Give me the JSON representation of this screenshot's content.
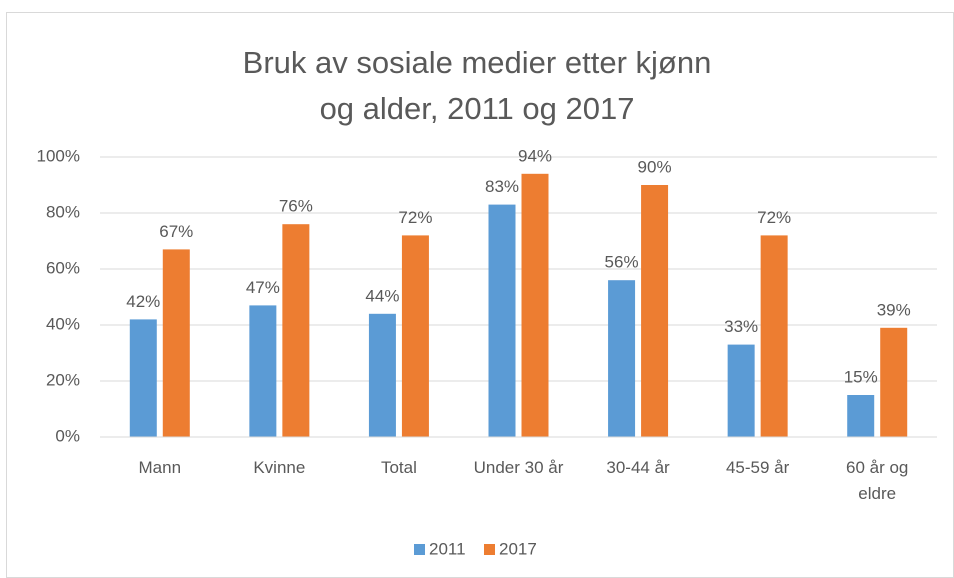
{
  "chart_data": {
    "type": "bar",
    "title": "Bruk av sosiale medier etter kjønn og alder, 2011 og 2017",
    "categories": [
      "Mann",
      "Kvinne",
      "Total",
      "Under 30 år",
      "30-44 år",
      "45-59 år",
      "60 år og eldre"
    ],
    "series": [
      {
        "name": "2011",
        "color": "#5b9bd5",
        "values": [
          42,
          47,
          44,
          83,
          56,
          33,
          15
        ],
        "value_labels": [
          "42%",
          "47%",
          "44%",
          "83%",
          "56%",
          "33%",
          "15%"
        ]
      },
      {
        "name": "2017",
        "color": "#ed7d31",
        "values": [
          67,
          76,
          72,
          94,
          90,
          72,
          39
        ],
        "value_labels": [
          "67%",
          "76%",
          "72%",
          "94%",
          "90%",
          "72%",
          "39%"
        ]
      }
    ],
    "ylim": [
      0,
      100
    ],
    "yticks": [
      {
        "value": 0,
        "label": "0%"
      },
      {
        "value": 20,
        "label": "20%"
      },
      {
        "value": 40,
        "label": "40%"
      },
      {
        "value": 60,
        "label": "60%"
      },
      {
        "value": 80,
        "label": "80%"
      },
      {
        "value": 100,
        "label": "100%"
      }
    ],
    "grid": true,
    "legend": "bottom"
  }
}
